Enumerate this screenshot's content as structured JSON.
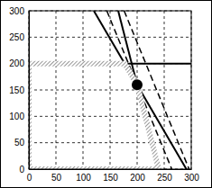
{
  "chart_data": {
    "type": "line",
    "xlim": [
      0,
      300
    ],
    "ylim": [
      0,
      300
    ],
    "xticks": [
      0,
      50,
      100,
      150,
      200,
      250,
      300
    ],
    "yticks": [
      0,
      50,
      100,
      150,
      200,
      250,
      300
    ],
    "grid": true,
    "series": [
      {
        "type": "line",
        "color": "#000000",
        "line_style": "solid",
        "x": [
          0,
          300
        ],
        "values": [
          200,
          200
        ]
      },
      {
        "type": "line",
        "color": "#000000",
        "line_style": "solid",
        "x": [
          165,
          240
        ],
        "values": [
          300,
          0
        ]
      },
      {
        "type": "line",
        "color": "#000000",
        "line_style": "solid",
        "x": [
          120,
          291
        ],
        "values": [
          300,
          0
        ]
      },
      {
        "type": "line",
        "color": "#000000",
        "line_style": "dashed",
        "x": [
          144,
          264
        ],
        "values": [
          300,
          0
        ]
      },
      {
        "type": "line",
        "color": "#000000",
        "line_style": "dashed",
        "x": [
          176,
          296
        ],
        "values": [
          300,
          0
        ]
      },
      {
        "type": "area",
        "color": "#b0b0b0",
        "line_style": "hatched",
        "x": [
          0,
          0,
          177,
          200,
          240
        ],
        "values": [
          0,
          200,
          200,
          160,
          0
        ]
      },
      {
        "type": "scatter",
        "color": "#000000",
        "marker": "circle",
        "x": [
          200
        ],
        "values": [
          160
        ]
      }
    ]
  }
}
